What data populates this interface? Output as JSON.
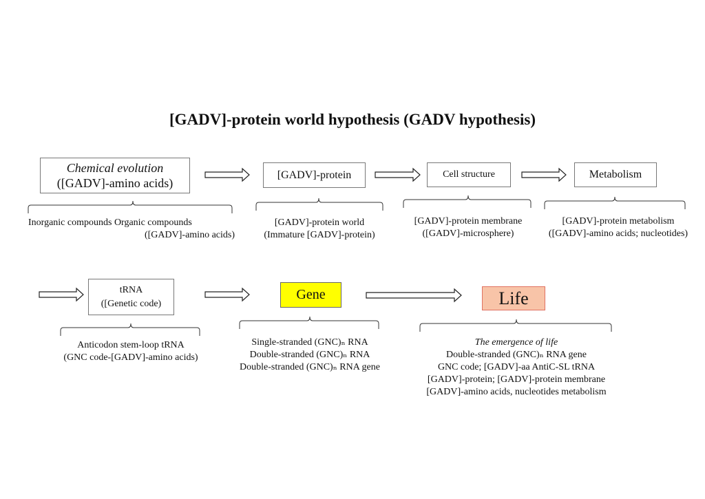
{
  "title": "[GADV]-protein world hypothesis (GADV hypothesis)",
  "row1": [
    {
      "box_lines": [
        "Chemical evolution",
        "([GADV]-amino acids)"
      ],
      "desc": [
        "Inorganic compounds Organic compounds",
        "([GADV]-amino acids)"
      ]
    },
    {
      "box_lines": [
        "[GADV]-protein"
      ],
      "desc": [
        "[GADV]-protein world",
        "(Immature [GADV]-protein)"
      ]
    },
    {
      "box_lines": [
        "Cell structure"
      ],
      "desc": [
        "[GADV]-protein membrane",
        "([GADV]-microsphere)"
      ]
    },
    {
      "box_lines": [
        "Metabolism"
      ],
      "desc": [
        "[GADV]-protein metabolism",
        "([GADV]-amino acids; nucleotides)"
      ]
    }
  ],
  "row2": [
    {
      "box_lines": [
        "tRNA",
        "([Genetic code)"
      ],
      "desc": [
        "Anticodon stem-loop tRNA",
        "(GNC code-[GADV]-amino acids)"
      ]
    },
    {
      "box_lines": [
        "Gene"
      ],
      "fill": "#ffff00",
      "desc": [
        "Single-stranded (GNC)ₙ RNA",
        "Double-stranded (GNC)ₙ RNA",
        "Double-stranded (GNC)ₙ RNA gene"
      ]
    },
    {
      "box_lines": [
        "Life"
      ],
      "fill": "#f8c4a8",
      "border": "#e07060",
      "desc": [
        "The emergence of life",
        "Double-stranded (GNC)ₙ RNA gene",
        "GNC code; [GADV]-aa AntiC-SL tRNA",
        "[GADV]-protein; [GADV]-protein membrane",
        "[GADV]-amino acids, nucleotides metabolism"
      ]
    }
  ]
}
